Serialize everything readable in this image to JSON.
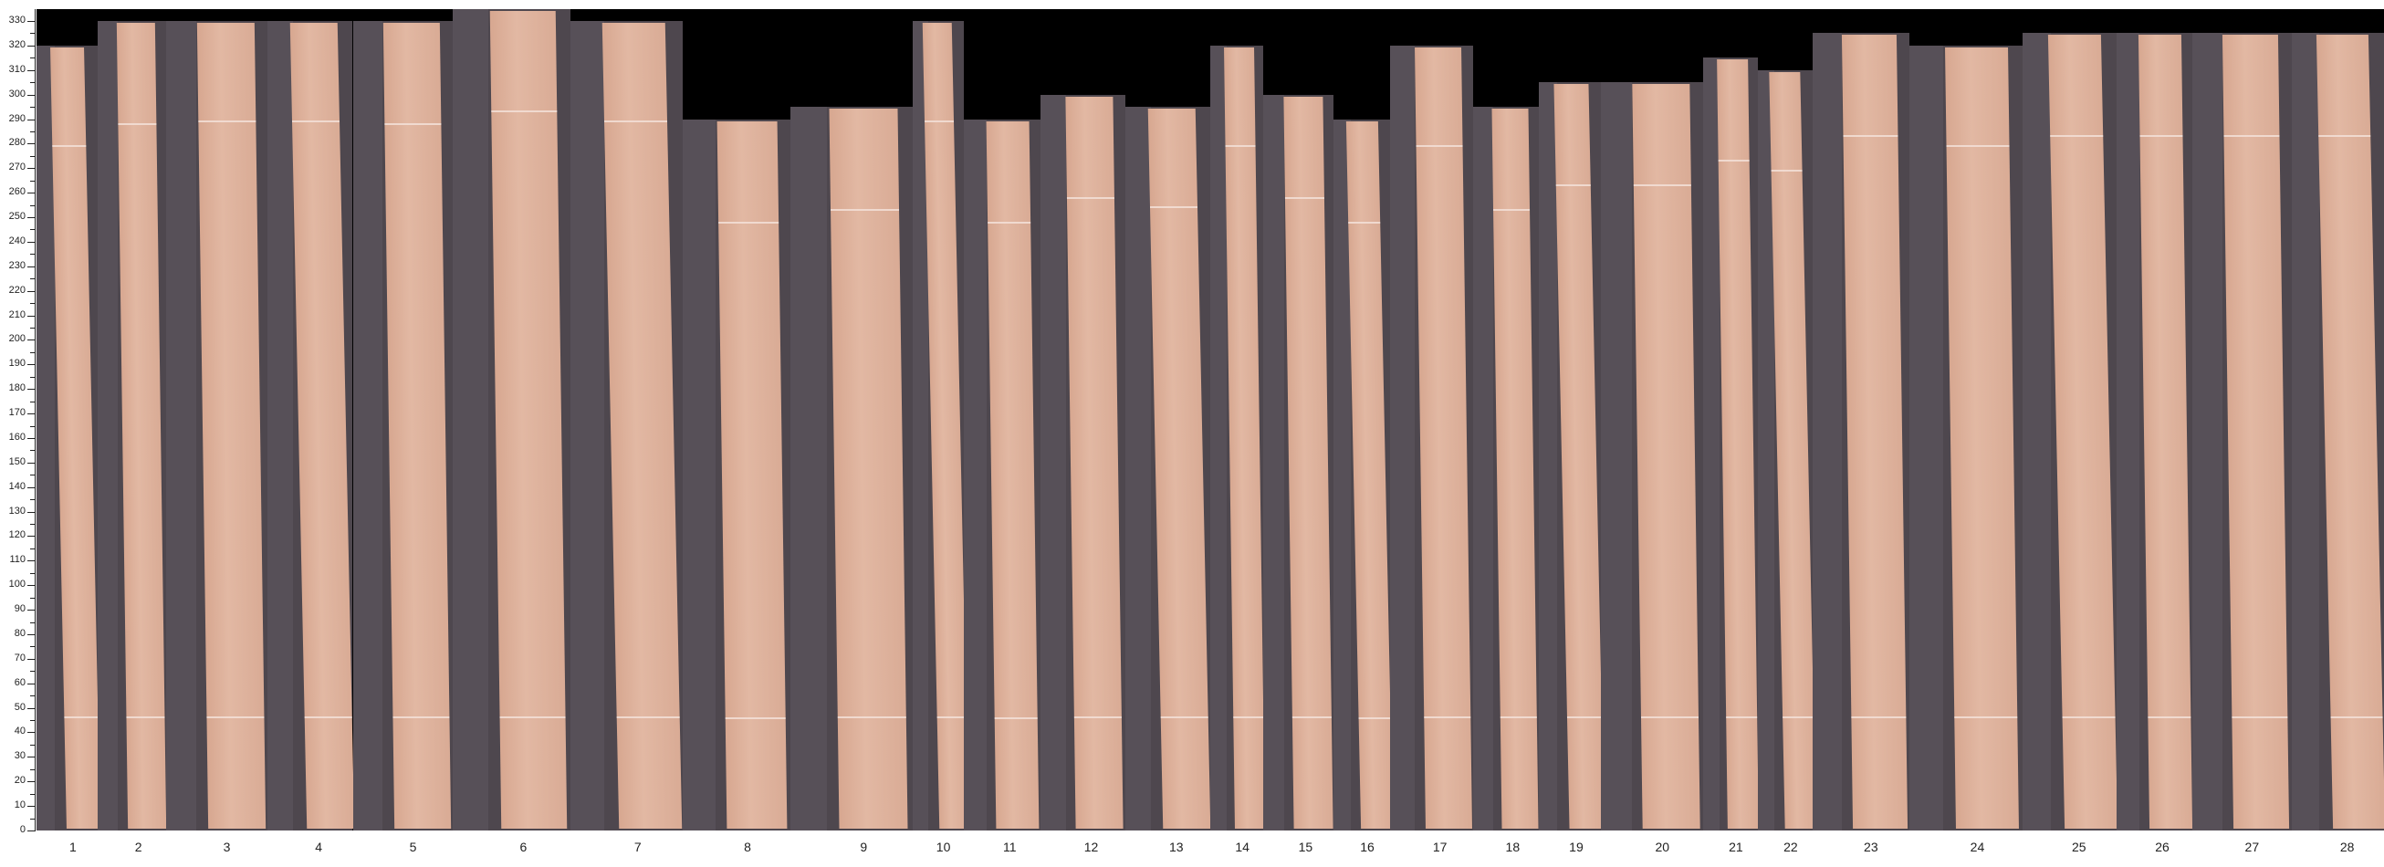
{
  "axis": {
    "min": 0,
    "max": 330,
    "major_step": 10,
    "minor_step": 5
  },
  "background_color": "#000000",
  "panel_color": "#4e474e",
  "board_color": "#dcae98",
  "boards": [
    {
      "label": "1",
      "length": 320
    },
    {
      "label": "2",
      "length": 330
    },
    {
      "label": "3",
      "length": 330
    },
    {
      "label": "4",
      "length": 330
    },
    {
      "label": "5",
      "length": 330
    },
    {
      "label": "6",
      "length": 335
    },
    {
      "label": "7",
      "length": 330
    },
    {
      "label": "8",
      "length": 290
    },
    {
      "label": "9",
      "length": 295
    },
    {
      "label": "10",
      "length": 330
    },
    {
      "label": "11",
      "length": 290
    },
    {
      "label": "12",
      "length": 300
    },
    {
      "label": "13",
      "length": 295
    },
    {
      "label": "14",
      "length": 320
    },
    {
      "label": "15",
      "length": 300
    },
    {
      "label": "16",
      "length": 290
    },
    {
      "label": "17",
      "length": 320
    },
    {
      "label": "18",
      "length": 295
    },
    {
      "label": "19",
      "length": 305
    },
    {
      "label": "20",
      "length": 305
    },
    {
      "label": "21",
      "length": 315
    },
    {
      "label": "22",
      "length": 310
    },
    {
      "label": "23",
      "length": 325
    },
    {
      "label": "24",
      "length": 320
    },
    {
      "label": "25",
      "length": 325
    },
    {
      "label": "26",
      "length": 325
    },
    {
      "label": "27",
      "length": 325
    },
    {
      "label": "28",
      "length": 325
    }
  ]
}
